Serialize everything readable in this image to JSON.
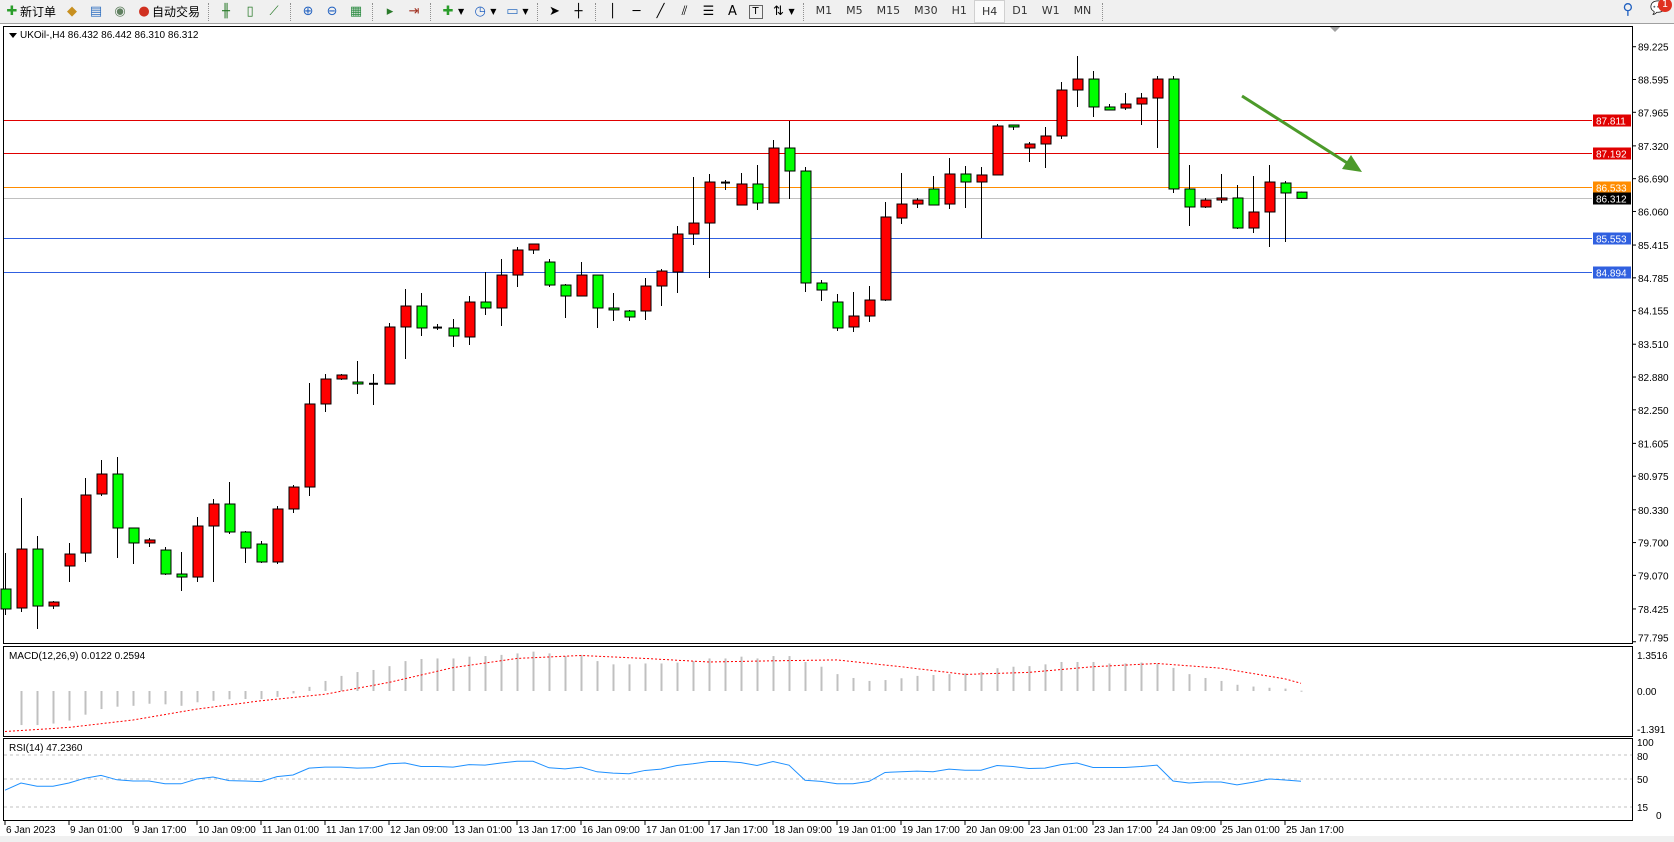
{
  "toolbar": {
    "new_order": "新订单",
    "auto_trading": "自动交易",
    "timeframes": [
      "M1",
      "M5",
      "M15",
      "M30",
      "H1",
      "H4",
      "D1",
      "W1",
      "MN"
    ],
    "active_timeframe": "H4",
    "notification_count": "1"
  },
  "chart": {
    "header": "UKOil-,H4  86.432 86.442 86.310 86.312",
    "macd_label": "MACD(12,26,9) 0.0122 0.2594",
    "rsi_label": "RSI(14) 47.2360"
  },
  "colors": {
    "bull": "#ff0000",
    "bear": "#00ff00",
    "resistance": "#e00000",
    "level_orange": "#ff8c00",
    "bid": "#c0c0c0",
    "support": "#3060e0",
    "arrow": "#4c9a2a",
    "macd_hist": "#c0c0c0",
    "macd_signal": "#ff0000",
    "rsi": "#1e90ff"
  },
  "chart_data": [
    {
      "type": "candlestick",
      "symbol": "UKOil-",
      "timeframe": "H4",
      "ylim": [
        77.795,
        89.225
      ],
      "y_ticks": [
        "89.225",
        "88.595",
        "87.965",
        "87.320",
        "86.690",
        "86.060",
        "85.415",
        "84.785",
        "84.155",
        "83.510",
        "82.880",
        "82.250",
        "81.605",
        "80.975",
        "80.330",
        "79.700",
        "79.070",
        "78.425",
        "77.795"
      ],
      "x_tick_labels": [
        "6 Jan 2023",
        "9 Jan 01:00",
        "9 Jan 17:00",
        "10 Jan 09:00",
        "11 Jan 01:00",
        "11 Jan 17:00",
        "12 Jan 09:00",
        "13 Jan 01:00",
        "13 Jan 17:00",
        "16 Jan 09:00",
        "17 Jan 01:00",
        "17 Jan 17:00",
        "18 Jan 09:00",
        "19 Jan 01:00",
        "19 Jan 17:00",
        "20 Jan 09:00",
        "23 Jan 01:00",
        "23 Jan 17:00",
        "24 Jan 09:00",
        "25 Jan 01:00",
        "25 Jan 17:00"
      ],
      "x_tick_every_bars": 4,
      "ohlc_fields": [
        "open",
        "high",
        "low",
        "close"
      ],
      "candles": [
        [
          78.808,
          79.499,
          78.308,
          78.424
        ],
        [
          78.443,
          80.556,
          78.366,
          79.576
        ],
        [
          79.576,
          79.826,
          78.04,
          78.481
        ],
        [
          78.481,
          78.578,
          78.424,
          78.558
        ],
        [
          79.25,
          79.692,
          78.942,
          79.48
        ],
        [
          79.499,
          80.94,
          79.327,
          80.614
        ],
        [
          80.633,
          81.286,
          80.594,
          81.017
        ],
        [
          81.017,
          81.344,
          79.403,
          79.98
        ],
        [
          79.98,
          79.98,
          79.288,
          79.692
        ],
        [
          79.692,
          79.788,
          79.615,
          79.75
        ],
        [
          79.557,
          79.615,
          79.077,
          79.096
        ],
        [
          79.096,
          79.518,
          78.769,
          79.038
        ],
        [
          79.038,
          80.191,
          78.942,
          80.018
        ],
        [
          80.018,
          80.537,
          78.942,
          80.441
        ],
        [
          80.441,
          80.863,
          79.865,
          79.903
        ],
        [
          79.903,
          79.922,
          79.307,
          79.595
        ],
        [
          79.672,
          79.73,
          79.307,
          79.327
        ],
        [
          79.327,
          80.402,
          79.288,
          80.345
        ],
        [
          80.345,
          80.806,
          80.268,
          80.767
        ],
        [
          80.767,
          82.765,
          80.594,
          82.362
        ],
        [
          82.362,
          82.938,
          82.208,
          82.842
        ],
        [
          82.842,
          82.938,
          82.823,
          82.919
        ],
        [
          82.784,
          83.188,
          82.554,
          82.746
        ],
        [
          82.746,
          82.938,
          82.342,
          82.75
        ],
        [
          82.746,
          83.917,
          82.746,
          83.841
        ],
        [
          83.841,
          84.571,
          83.226,
          84.244
        ],
        [
          84.244,
          84.494,
          83.668,
          83.822
        ],
        [
          83.822,
          83.898,
          83.783,
          83.83
        ],
        [
          83.822,
          83.994,
          83.456,
          83.668
        ],
        [
          83.649,
          84.436,
          83.495,
          84.321
        ],
        [
          84.321,
          84.897,
          84.071,
          84.206
        ],
        [
          84.206,
          85.147,
          83.86,
          84.839
        ],
        [
          84.839,
          85.377,
          84.609,
          85.32
        ],
        [
          85.32,
          85.435,
          85.243,
          85.435
        ],
        [
          85.089,
          85.147,
          84.609,
          84.647
        ],
        [
          84.647,
          84.667,
          84.014,
          84.436
        ],
        [
          84.436,
          85.089,
          84.436,
          84.839
        ],
        [
          84.839,
          84.839,
          83.822,
          84.206
        ],
        [
          84.206,
          84.494,
          83.956,
          84.168
        ],
        [
          84.148,
          84.168,
          83.956,
          84.033
        ],
        [
          84.148,
          84.782,
          83.975,
          84.628
        ],
        [
          84.628,
          84.955,
          84.244,
          84.916
        ],
        [
          84.897,
          85.781,
          84.494,
          85.627
        ],
        [
          85.627,
          86.722,
          85.416,
          85.838
        ],
        [
          85.838,
          86.78,
          84.782,
          86.626
        ],
        [
          86.607,
          86.665,
          86.472,
          86.615
        ],
        [
          86.184,
          86.799,
          86.184,
          86.588
        ],
        [
          86.588,
          86.953,
          86.088,
          86.223
        ],
        [
          86.223,
          87.433,
          86.223,
          87.279
        ],
        [
          87.279,
          87.798,
          86.3,
          86.837
        ],
        [
          86.837,
          86.914,
          84.513,
          84.686
        ],
        [
          84.686,
          84.744,
          84.34,
          84.551
        ],
        [
          84.321,
          84.475,
          83.764,
          83.822
        ],
        [
          83.841,
          84.513,
          83.745,
          84.052
        ],
        [
          84.052,
          84.628,
          83.937,
          84.359
        ],
        [
          84.359,
          86.242,
          84.34,
          85.954
        ],
        [
          85.934,
          86.799,
          85.819,
          86.203
        ],
        [
          86.203,
          86.319,
          86.126,
          86.28
        ],
        [
          86.492,
          86.741,
          86.184,
          86.184
        ],
        [
          86.203,
          87.087,
          86.107,
          86.78
        ],
        [
          86.78,
          86.933,
          86.126,
          86.626
        ],
        [
          86.626,
          86.914,
          85.55,
          86.761
        ],
        [
          86.761,
          87.74,
          86.761,
          87.702
        ],
        [
          87.721,
          87.721,
          87.625,
          87.683
        ],
        [
          87.279,
          87.394,
          87.01,
          87.356
        ],
        [
          87.356,
          87.682,
          86.895,
          87.51
        ],
        [
          87.51,
          88.547,
          87.452,
          88.393
        ],
        [
          88.393,
          89.046,
          88.067,
          88.604
        ],
        [
          88.604,
          88.758,
          87.875,
          88.067
        ],
        [
          88.067,
          88.124,
          88.009,
          88.009
        ],
        [
          88.047,
          88.336,
          88.009,
          88.124
        ],
        [
          88.124,
          88.336,
          87.721,
          88.239
        ],
        [
          88.239,
          88.662,
          87.279,
          88.604
        ],
        [
          88.604,
          88.662,
          86.415,
          86.492
        ],
        [
          86.492,
          86.953,
          85.781,
          86.146
        ],
        [
          86.146,
          86.319,
          86.126,
          86.28
        ],
        [
          86.28,
          86.78,
          86.223,
          86.319
        ],
        [
          86.319,
          86.569,
          85.723,
          85.742
        ],
        [
          85.742,
          86.741,
          85.646,
          86.05
        ],
        [
          86.05,
          86.953,
          85.377,
          86.626
        ],
        [
          86.607,
          86.645,
          85.474,
          86.415
        ],
        [
          86.432,
          86.442,
          86.31,
          86.312
        ]
      ],
      "horizontal_levels": [
        {
          "price": "87.811",
          "role": "resistance"
        },
        {
          "price": "87.192",
          "role": "resistance"
        },
        {
          "price": "86.533",
          "role": "level_orange"
        },
        {
          "price": "86.312",
          "role": "bid"
        },
        {
          "price": "85.553",
          "role": "support"
        },
        {
          "price": "84.894",
          "role": "support"
        }
      ],
      "annotation": "downward-arrow"
    },
    {
      "type": "bar+line",
      "name": "MACD(12,26,9)",
      "ylim": [
        -1.391,
        1.3516
      ],
      "y_ticks": [
        "1.3516",
        "0.00",
        "-1.391"
      ],
      "histogram": [
        null,
        -1.15,
        -1.15,
        -1.1,
        -1.0,
        -0.8,
        -0.61,
        -0.53,
        -0.5,
        -0.43,
        -0.45,
        -0.5,
        -0.38,
        -0.33,
        -0.28,
        -0.27,
        -0.27,
        -0.2,
        -0.08,
        0.14,
        0.34,
        0.51,
        0.64,
        0.71,
        0.84,
        1.01,
        1.08,
        1.1,
        1.1,
        1.16,
        1.18,
        1.22,
        1.27,
        1.33,
        1.27,
        1.18,
        1.22,
        1.01,
        0.9,
        0.9,
        0.93,
        0.93,
        0.96,
        1.01,
        1.1,
        1.1,
        1.16,
        1.1,
        1.18,
        1.18,
        0.98,
        0.82,
        0.57,
        0.44,
        0.34,
        0.37,
        0.43,
        0.51,
        0.54,
        0.57,
        0.6,
        0.64,
        0.77,
        0.82,
        0.84,
        0.9,
        0.98,
        0.98,
        0.98,
        0.93,
        0.93,
        0.96,
        0.93,
        0.78,
        0.57,
        0.44,
        0.34,
        0.21,
        0.15,
        0.11,
        0.08,
        0.01
      ],
      "signal_points": [
        [
          0,
          -1.37
        ],
        [
          4,
          -1.23
        ],
        [
          8,
          -0.98
        ],
        [
          12,
          -0.61
        ],
        [
          16,
          -0.33
        ],
        [
          20,
          -0.11
        ],
        [
          24,
          0.29
        ],
        [
          28,
          0.79
        ],
        [
          32,
          1.1
        ],
        [
          36,
          1.2
        ],
        [
          40,
          1.1
        ],
        [
          43,
          1.01
        ],
        [
          44,
          0.98
        ],
        [
          48,
          1.02
        ],
        [
          52,
          1.05
        ],
        [
          56,
          0.82
        ],
        [
          60,
          0.56
        ],
        [
          64,
          0.63
        ],
        [
          68,
          0.82
        ],
        [
          72,
          0.93
        ],
        [
          76,
          0.77
        ],
        [
          80,
          0.41
        ],
        [
          81,
          0.26
        ]
      ]
    },
    {
      "type": "line",
      "name": "RSI(14)",
      "ylim": [
        0,
        100
      ],
      "y_ticks": [
        "100",
        "80",
        "50",
        "15",
        "0"
      ],
      "levels": [
        80,
        50,
        15
      ],
      "values": [
        36,
        45,
        41,
        41,
        45,
        51,
        54.5,
        49,
        47.5,
        47.5,
        44,
        44,
        50,
        52.5,
        48,
        47.5,
        46.7,
        53,
        55,
        63.6,
        64.8,
        64.8,
        63.6,
        64,
        69,
        70,
        65.6,
        65.6,
        64.8,
        68,
        67.3,
        70,
        72.2,
        72.2,
        64,
        62.7,
        64.8,
        59,
        57.4,
        56.6,
        60.7,
        62.3,
        66.9,
        69,
        71.8,
        71.8,
        70.5,
        66.9,
        71.8,
        67.3,
        48.4,
        47,
        44,
        44,
        47,
        58.2,
        59,
        59.9,
        59,
        62.3,
        61,
        61,
        66.9,
        65.6,
        63.2,
        63.6,
        68,
        70,
        64.4,
        64.4,
        64.4,
        65.6,
        67.3,
        47.5,
        45,
        46.3,
        46.3,
        42.6,
        45.9,
        50,
        48.8,
        47.2
      ]
    }
  ]
}
